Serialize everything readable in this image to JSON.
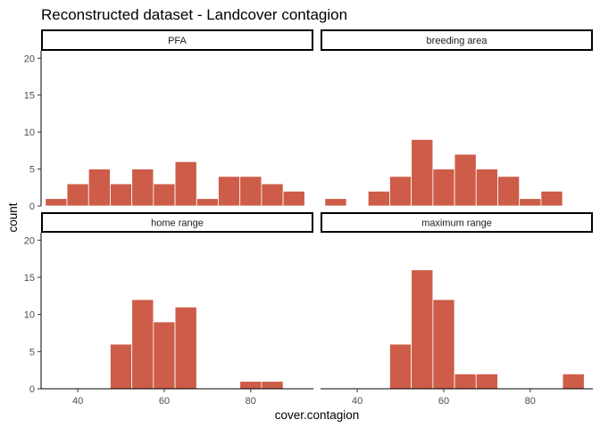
{
  "chart_data": {
    "type": "bar",
    "title": "Reconstructed dataset - Landcover contagion",
    "xlabel": "cover.contagion",
    "ylabel": "count",
    "fill_color": "#cd5c48",
    "bar_outline_color": "#ffffff",
    "bin_width": 5,
    "xlim": [
      31.5,
      94.5
    ],
    "ylim": [
      0,
      21
    ],
    "x_ticks": [
      40,
      60,
      80
    ],
    "y_ticks": [
      0,
      5,
      10,
      15,
      20
    ],
    "grid": false,
    "panels": [
      {
        "label": "PFA",
        "bins": [
          {
            "x": 35,
            "count": 1
          },
          {
            "x": 40,
            "count": 3
          },
          {
            "x": 45,
            "count": 5
          },
          {
            "x": 50,
            "count": 3
          },
          {
            "x": 55,
            "count": 5
          },
          {
            "x": 60,
            "count": 3
          },
          {
            "x": 65,
            "count": 6
          },
          {
            "x": 70,
            "count": 1
          },
          {
            "x": 75,
            "count": 4
          },
          {
            "x": 80,
            "count": 4
          },
          {
            "x": 85,
            "count": 3
          },
          {
            "x": 90,
            "count": 2
          }
        ]
      },
      {
        "label": "breeding area",
        "bins": [
          {
            "x": 35,
            "count": 1
          },
          {
            "x": 45,
            "count": 2
          },
          {
            "x": 50,
            "count": 4
          },
          {
            "x": 55,
            "count": 9
          },
          {
            "x": 60,
            "count": 5
          },
          {
            "x": 65,
            "count": 7
          },
          {
            "x": 70,
            "count": 5
          },
          {
            "x": 75,
            "count": 4
          },
          {
            "x": 80,
            "count": 1
          },
          {
            "x": 85,
            "count": 2
          }
        ]
      },
      {
        "label": "home range",
        "bins": [
          {
            "x": 50,
            "count": 6
          },
          {
            "x": 55,
            "count": 12
          },
          {
            "x": 60,
            "count": 9
          },
          {
            "x": 65,
            "count": 11
          },
          {
            "x": 80,
            "count": 1
          },
          {
            "x": 85,
            "count": 1
          }
        ]
      },
      {
        "label": "maximum range",
        "bins": [
          {
            "x": 50,
            "count": 6
          },
          {
            "x": 55,
            "count": 16
          },
          {
            "x": 60,
            "count": 12
          },
          {
            "x": 65,
            "count": 2
          },
          {
            "x": 70,
            "count": 2
          },
          {
            "x": 90,
            "count": 2
          }
        ]
      }
    ]
  }
}
